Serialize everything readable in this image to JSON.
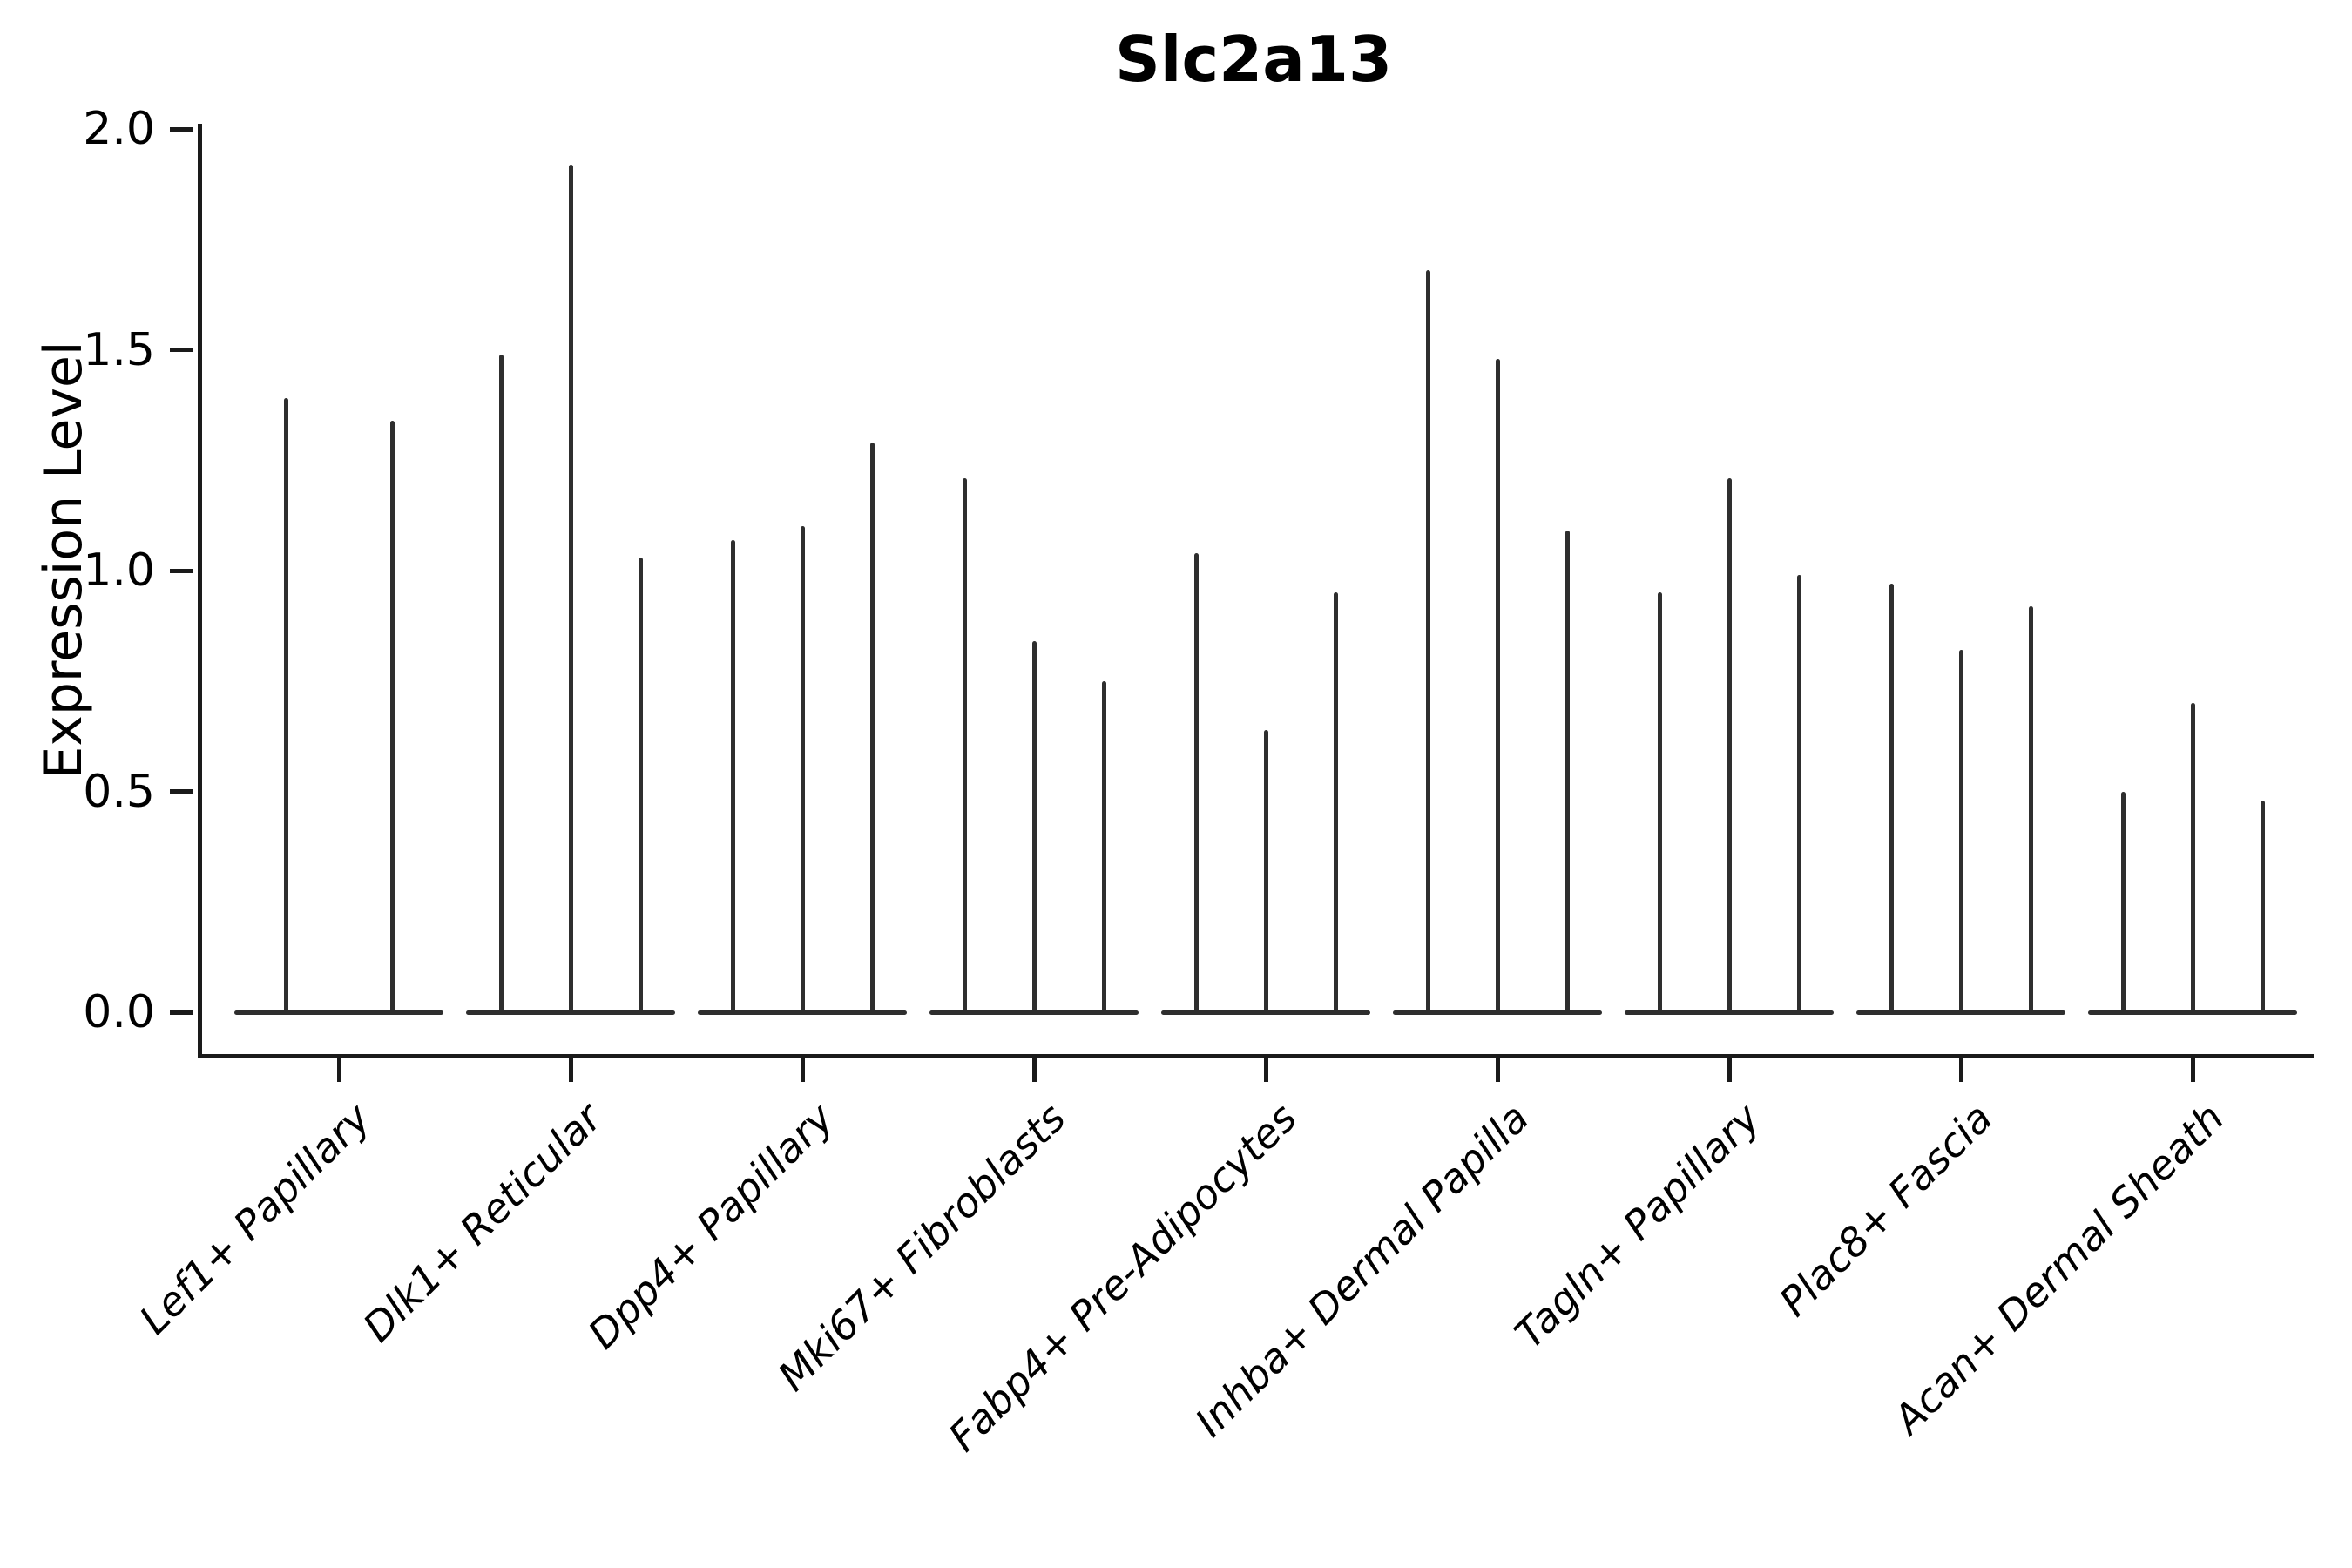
{
  "colors": {
    "violin": "#2e2e2e",
    "axis": "#1a1a1a",
    "text": "#000000",
    "background": "#ffffff"
  },
  "chart_data": {
    "type": "violin",
    "title": "Slc2a13",
    "xlabel": "",
    "ylabel": "Expression Level",
    "ylim": [
      0.0,
      2.0
    ],
    "yticks": [
      0.0,
      0.5,
      1.0,
      1.5,
      2.0
    ],
    "ytick_labels": [
      "0.0",
      "0.5",
      "1.0",
      "1.5",
      "2.0"
    ],
    "grid": false,
    "legend": "none",
    "categories": [
      "Lef1+ Papillary",
      "Dlk1+ Reticular",
      "Dpp4+ Papillary",
      "Mki67+ Fibroblasts",
      "Fabp4+ Pre-Adipocytes",
      "Inhba+ Dermal Papilla",
      "Tagln+ Papillary",
      "Plac8+ Fascia",
      "Acan+ Dermal Sheath"
    ],
    "groups": [
      {
        "category": "Lef1+ Papillary",
        "violin_max_values": [
          1.39,
          1.34
        ]
      },
      {
        "category": "Dlk1+ Reticular",
        "violin_max_values": [
          1.49,
          1.92,
          1.03
        ]
      },
      {
        "category": "Dpp4+ Papillary",
        "violin_max_values": [
          1.07,
          1.1,
          1.29
        ]
      },
      {
        "category": "Mki67+ Fibroblasts",
        "violin_max_values": [
          1.21,
          0.84,
          0.75
        ]
      },
      {
        "category": "Fabp4+ Pre-Adipocytes",
        "violin_max_values": [
          1.04,
          0.64,
          0.95
        ]
      },
      {
        "category": "Inhba+ Dermal Papilla",
        "violin_max_values": [
          1.68,
          1.48,
          1.09
        ]
      },
      {
        "category": "Tagln+ Papillary",
        "violin_max_values": [
          0.95,
          1.21,
          0.99
        ]
      },
      {
        "category": "Plac8+ Fascia",
        "violin_max_values": [
          0.97,
          0.82,
          0.92
        ]
      },
      {
        "category": "Acan+ Dermal Sheath",
        "violin_max_values": [
          0.5,
          0.7,
          0.48
        ]
      }
    ],
    "violin_shape_note": "Each violin collapses to a flat base at expression 0 with a thin spike rising to its max value"
  }
}
